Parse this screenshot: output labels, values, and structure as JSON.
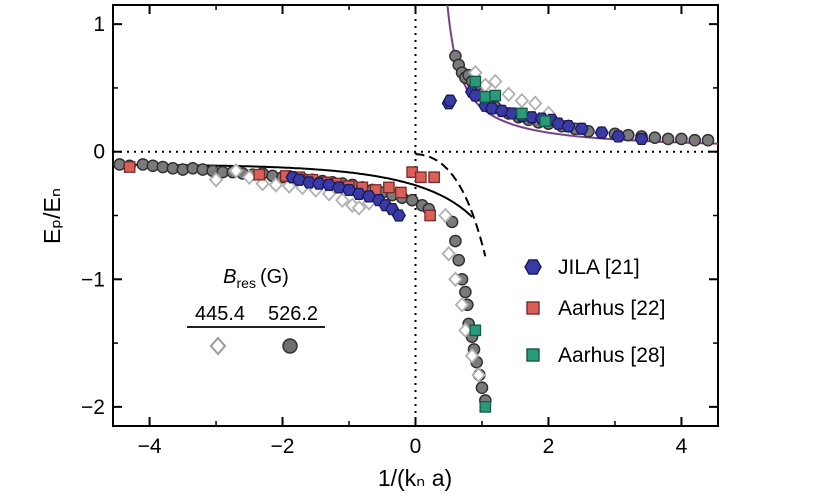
{
  "chart_data": {
    "type": "scatter",
    "xlabel": "1/(kₙ a)",
    "ylabel": "Eₚ/Eₙ",
    "xlim": [
      -4.55,
      4.55
    ],
    "ylim": [
      -2.15,
      1.15
    ],
    "x_ticks": [
      -4,
      -2,
      0,
      2,
      4
    ],
    "x_tick_labels": [
      "−4",
      "−2",
      "0",
      "2",
      "4"
    ],
    "y_ticks": [
      -2,
      -1,
      0,
      1
    ],
    "y_tick_labels": [
      "−2",
      "−1",
      "0",
      "1"
    ],
    "reference_lines": {
      "x": 0,
      "y": 0,
      "style": "dotted"
    },
    "colors": {
      "jila": "#3a3aa6",
      "aarhus22": "#d9605a",
      "aarhus28": "#2a9a7a",
      "grey": "#8a8a8a",
      "purple_curve": "#7a3f8a"
    },
    "inset": {
      "title_main": "B",
      "title_sub": "res",
      "title_unit": "(G)",
      "fields": [
        {
          "label": "445.4",
          "marker": "diamond"
        },
        {
          "label": "526.2",
          "marker": "circle"
        }
      ]
    },
    "legend": [
      {
        "name": "JILA [21]",
        "marker": "hexagon",
        "color": "#3a3aa6"
      },
      {
        "name": "Aarhus [22]",
        "marker": "square",
        "color": "#d9605a"
      },
      {
        "name": "Aarhus [28]",
        "marker": "square",
        "color": "#2a9a7a"
      }
    ],
    "series": [
      {
        "name": "JILA [21]",
        "marker": "hexagon",
        "color": "#3a3aa6",
        "x": [
          -1.85,
          -1.75,
          -1.6,
          -1.45,
          -1.3,
          -1.15,
          -1.0,
          -0.85,
          -0.7,
          -0.55,
          -0.45,
          -0.35,
          -0.25,
          0.5,
          0.52,
          0.85,
          0.9,
          1.05,
          1.15,
          1.3,
          1.45,
          1.6,
          1.75,
          1.9,
          2.05,
          2.15,
          2.3,
          2.5,
          2.8,
          3.05,
          3.4
        ],
        "y": [
          -0.2,
          -0.22,
          -0.24,
          -0.25,
          -0.26,
          -0.28,
          -0.3,
          -0.33,
          -0.35,
          -0.38,
          -0.42,
          -0.45,
          -0.5,
          0.38,
          0.4,
          0.47,
          0.44,
          0.36,
          0.34,
          0.32,
          0.3,
          0.28,
          0.27,
          0.26,
          0.25,
          0.22,
          0.2,
          0.18,
          0.15,
          0.12,
          0.1
        ]
      },
      {
        "name": "Aarhus [22]",
        "marker": "square",
        "color": "#d9605a",
        "x": [
          -4.3,
          -2.35,
          -1.95,
          -1.75,
          -1.55,
          -1.35,
          -1.2,
          -1.0,
          -0.8,
          -0.6,
          -0.4,
          -0.22,
          -0.05,
          0.08,
          0.22,
          0.28
        ],
        "y": [
          -0.12,
          -0.18,
          -0.19,
          -0.2,
          -0.22,
          -0.24,
          -0.25,
          -0.27,
          -0.28,
          -0.3,
          -0.28,
          -0.32,
          -0.16,
          -0.2,
          -0.5,
          -0.2
        ]
      },
      {
        "name": "Aarhus [28]",
        "marker": "square",
        "color": "#2a9a7a",
        "x": [
          0.9,
          1.05,
          1.2,
          1.6,
          1.95,
          0.9,
          1.05
        ],
        "y": [
          0.55,
          0.43,
          0.44,
          0.3,
          0.24,
          -1.4,
          -2.0
        ]
      },
      {
        "name": "445.4 G",
        "marker": "diamond",
        "color": "#b0b0b0",
        "x": [
          -3.0,
          -2.7,
          -2.5,
          -2.3,
          -2.1,
          -1.9,
          -1.7,
          -1.5,
          -1.3,
          -1.1,
          -0.95,
          -0.85,
          -0.7,
          0.9,
          1.05,
          1.2,
          1.4,
          1.6,
          1.8,
          2.0,
          2.3,
          0.45,
          0.5,
          0.6,
          0.7,
          0.75,
          0.85,
          0.95
        ],
        "y": [
          -0.22,
          -0.15,
          -0.2,
          -0.25,
          -0.26,
          -0.27,
          -0.28,
          -0.3,
          -0.33,
          -0.38,
          -0.42,
          -0.44,
          -0.4,
          0.62,
          0.52,
          0.55,
          0.45,
          0.4,
          0.38,
          0.3,
          0.2,
          -0.5,
          -0.8,
          -1.0,
          -1.2,
          -1.4,
          -1.6,
          -1.75
        ]
      },
      {
        "name": "526.2 G",
        "marker": "circle",
        "color": "#8a8a8a",
        "x": [
          -4.45,
          -4.3,
          -4.1,
          -3.95,
          -3.8,
          -3.65,
          -3.5,
          -3.35,
          -3.2,
          -3.05,
          -2.9,
          -2.75,
          -2.6,
          -2.45,
          -2.3,
          -2.15,
          -2.0,
          -1.85,
          -1.7,
          -1.55,
          -1.4,
          -1.25,
          -1.1,
          -0.95,
          -0.8,
          -0.65,
          -0.5,
          -0.35,
          -0.2,
          -0.05,
          0.1,
          0.2,
          0.55,
          0.6,
          0.65,
          0.7,
          0.75,
          0.78,
          0.8,
          0.85,
          0.88,
          0.92,
          0.96,
          1.0,
          1.05,
          0.6,
          0.65,
          0.7,
          0.75,
          0.8,
          0.85,
          0.9,
          0.95,
          1.0,
          1.05,
          1.1,
          1.2,
          1.3,
          1.4,
          1.55,
          1.7,
          1.85,
          2.0,
          2.2,
          2.4,
          2.6,
          2.8,
          3.0,
          3.2,
          3.4,
          3.6,
          3.8,
          4.0,
          4.2,
          4.4
        ],
        "y": [
          -0.1,
          -0.11,
          -0.1,
          -0.11,
          -0.12,
          -0.13,
          -0.14,
          -0.13,
          -0.14,
          -0.15,
          -0.16,
          -0.16,
          -0.17,
          -0.18,
          -0.17,
          -0.19,
          -0.2,
          -0.2,
          -0.21,
          -0.22,
          -0.23,
          -0.24,
          -0.25,
          -0.26,
          -0.28,
          -0.3,
          -0.32,
          -0.34,
          -0.36,
          -0.38,
          -0.42,
          -0.45,
          -0.55,
          -0.7,
          -0.85,
          -1.0,
          -1.1,
          -1.2,
          -1.35,
          -1.45,
          -1.55,
          -1.65,
          -1.75,
          -1.85,
          -1.95,
          0.75,
          0.68,
          0.62,
          0.58,
          0.6,
          0.55,
          0.52,
          0.48,
          0.45,
          0.42,
          0.4,
          0.35,
          0.32,
          0.3,
          0.27,
          0.25,
          0.23,
          0.22,
          0.2,
          0.18,
          0.16,
          0.15,
          0.14,
          0.13,
          0.12,
          0.11,
          0.1,
          0.1,
          0.09,
          0.09
        ]
      }
    ],
    "curves": [
      {
        "name": "attractive-branch",
        "style": "solid",
        "color": "#000000",
        "x_range": [
          -4.55,
          0.85
        ]
      },
      {
        "name": "repulsive-branch",
        "style": "solid",
        "color": "#7a3f8a",
        "x_range": [
          0.4,
          4.55
        ]
      },
      {
        "name": "dashed-branch",
        "style": "dashed",
        "color": "#000000",
        "x_range": [
          0.0,
          1.05
        ]
      }
    ]
  }
}
